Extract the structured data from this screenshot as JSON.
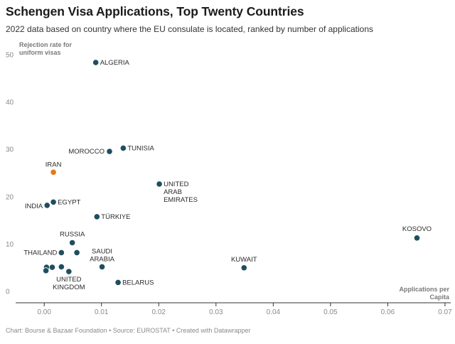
{
  "title": "Schengen Visa Applications, Top Twenty Countries",
  "subtitle": "2022 data based on country where the EU consulate is located, ranked by number of applications",
  "footer": "Chart: Bourse & Bazaar Foundation • Source: EUROSTAT • Created with Datawrapper",
  "chart_data": {
    "type": "scatter",
    "ylabel": [
      "Rejection rate for",
      "uniform visas"
    ],
    "xlabel": [
      "Applications per",
      "Capita"
    ],
    "xlim": [
      -0.004,
      0.071
    ],
    "ylim": [
      -2.5,
      51
    ],
    "x_ticks": [
      {
        "value": 0,
        "label": "0.00"
      },
      {
        "value": 0.01,
        "label": "0.01"
      },
      {
        "value": 0.02,
        "label": "0.02"
      },
      {
        "value": 0.03,
        "label": "0.03"
      },
      {
        "value": 0.04,
        "label": "0.04"
      },
      {
        "value": 0.05,
        "label": "0.05"
      },
      {
        "value": 0.06,
        "label": "0.06"
      },
      {
        "value": 0.07,
        "label": "0.07"
      }
    ],
    "y_ticks": [
      {
        "value": 0,
        "label": "0"
      },
      {
        "value": 10,
        "label": "10"
      },
      {
        "value": 20,
        "label": "20"
      },
      {
        "value": 30,
        "label": "30"
      },
      {
        "value": 40,
        "label": "40"
      },
      {
        "value": 50,
        "label": "50"
      }
    ],
    "grid": false,
    "colors": {
      "default": "#1f4e5f",
      "highlight": "#e07b1f"
    },
    "points": [
      {
        "label": "ALGERIA",
        "x": 0.009,
        "y": 48.3
      },
      {
        "label": "TUNISIA",
        "x": 0.0138,
        "y": 30.2
      },
      {
        "label": "MOROCCO",
        "x": 0.0114,
        "y": 29.5
      },
      {
        "label": "IRAN",
        "x": 0.0016,
        "y": 25.1,
        "highlight": true
      },
      {
        "label": "UNITED ARAB EMIRATES",
        "label_lines": [
          "UNITED",
          "ARAB",
          "EMIRATES"
        ],
        "x": 0.0201,
        "y": 22.6
      },
      {
        "label": "EGYPT",
        "x": 0.0016,
        "y": 18.8
      },
      {
        "label": "INDIA",
        "x": 0.0005,
        "y": 18.1
      },
      {
        "label": "TÜRKIYE",
        "x": 0.0092,
        "y": 15.7
      },
      {
        "label": "KOSOVO",
        "x": 0.0651,
        "y": 11.2
      },
      {
        "label": "RUSSIA",
        "x": 0.0049,
        "y": 10.2
      },
      {
        "label": "THAILAND",
        "x": 0.003,
        "y": 8.1
      },
      {
        "label": "",
        "x": 0.0057,
        "y": 8.1
      },
      {
        "label": "SAUDI ARABIA",
        "label_lines": [
          "SAUDI",
          "ARABIA"
        ],
        "x": 0.0101,
        "y": 5.1
      },
      {
        "label": "KUWAIT",
        "x": 0.0349,
        "y": 4.9
      },
      {
        "label": "",
        "x": 0.0004,
        "y": 5.0
      },
      {
        "label": "",
        "x": 0.0014,
        "y": 5.0
      },
      {
        "label": "",
        "x": 0.003,
        "y": 5.1
      },
      {
        "label": "",
        "x": 0.0003,
        "y": 4.3
      },
      {
        "label": "UNITED KINGDOM",
        "label_lines": [
          "UNITED",
          "KINGDOM"
        ],
        "x": 0.0043,
        "y": 4.1
      },
      {
        "label": "BELARUS",
        "x": 0.0129,
        "y": 1.8
      }
    ]
  }
}
